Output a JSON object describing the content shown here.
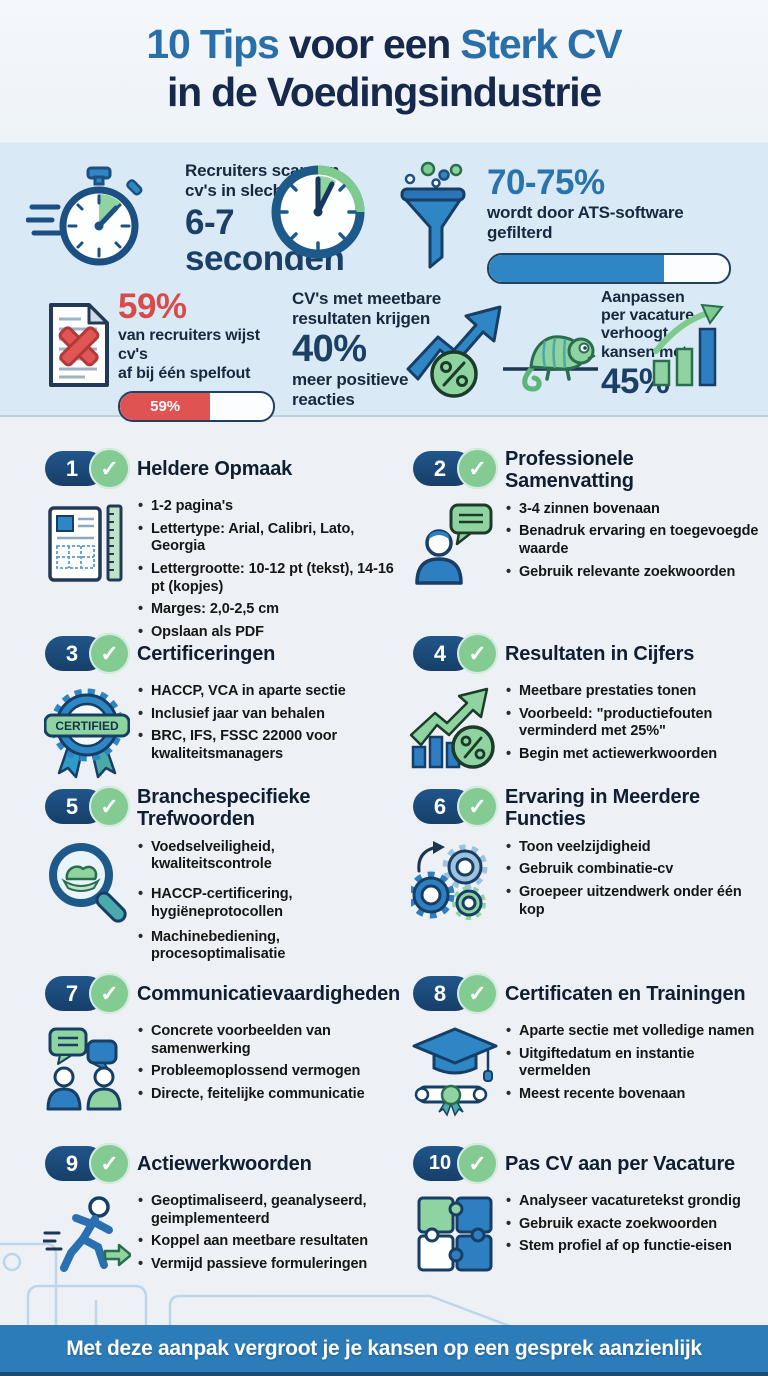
{
  "colors": {
    "accent_blue": "#2a6fa8",
    "dark_navy": "#16294a",
    "band_bg": "#d9e9f5",
    "green": "#7ecb90",
    "red": "#d94b4b",
    "bar_blue": "#2e86c4",
    "footer_bg": "#2d7cba"
  },
  "header": {
    "title_part1": "10 Tips ",
    "title_part2": "voor een ",
    "title_part3": "Sterk CV",
    "title_line2": "in de Voedingsindustrie"
  },
  "stats": {
    "scan": {
      "label": "Recruiters scannen\ncv's in slechts",
      "value": "6-7\nseconden"
    },
    "ats": {
      "value": "70-75%",
      "label": "wordt door ATS-software gefilterd",
      "bar_percent": 73
    },
    "spelling": {
      "value": "59%",
      "label": "van recruiters wijst cv's\naf bij één spelfout",
      "bar_label": "59%",
      "bar_percent": 59
    },
    "measurable": {
      "label_top": "CV's met meetbare\nresultaten krijgen",
      "value": "40%",
      "label_bottom": "meer positieve\nreacties"
    },
    "tailor": {
      "label": "Aanpassen\nper vacature\nverhoogt\nkansen met",
      "value": "45%"
    }
  },
  "icons": {
    "certified_label": "CERTIFIED",
    "check_glyph": "✓"
  },
  "tips": [
    {
      "number": "1",
      "title": "Heldere Opmaak",
      "bullets": [
        "1-2 pagina's",
        "Lettertype: Arial, Calibri, Lato, Georgia",
        "Lettergrootte: 10-12 pt (tekst), 14-16 pt (kopjes)",
        "Marges: 2,0-2,5 cm",
        "Opslaan als PDF"
      ]
    },
    {
      "number": "2",
      "title": "Professionele Samenvatting",
      "bullets": [
        "3-4 zinnen bovenaan",
        "Benadruk ervaring en toegevoegde waarde",
        "Gebruik relevante zoekwoorden"
      ]
    },
    {
      "number": "3",
      "title": "Certificeringen",
      "bullets": [
        "HACCP, VCA in aparte sectie",
        "Inclusief jaar van behalen",
        "BRC, IFS, FSSC 22000 voor kwaliteitsmanagers"
      ]
    },
    {
      "number": "4",
      "title": "Resultaten in Cijfers",
      "bullets": [
        "Meetbare prestaties tonen",
        "Voorbeeld: \"productiefouten verminderd met 25%\"",
        "Begin met actiewerkwoorden"
      ]
    },
    {
      "number": "5",
      "title": "Branchespecifieke Trefwoorden",
      "bullets": [
        "Voedselveiligheid, kwaliteitscontrole",
        "HACCP-certificering, hygiëneprotocollen",
        "Machinebediening, procesoptimalisatie"
      ]
    },
    {
      "number": "6",
      "title": "Ervaring in Meerdere Functies",
      "bullets": [
        "Toon veelzijdigheid",
        "Gebruik combinatie-cv",
        "Groepeer uitzendwerk onder één kop"
      ]
    },
    {
      "number": "7",
      "title": "Communicatievaardigheden",
      "bullets": [
        "Concrete voorbeelden van samenwerking",
        "Probleemoplossend vermogen",
        "Directe, feitelijke communicatie"
      ]
    },
    {
      "number": "8",
      "title": "Certificaten en Trainingen",
      "bullets": [
        "Aparte sectie met volledige namen",
        "Uitgiftedatum en instantie vermelden",
        "Meest recente bovenaan"
      ]
    },
    {
      "number": "9",
      "title": "Actiewerkwoorden",
      "bullets": [
        "Geoptimaliseerd, geanalyseerd, geimplementeerd",
        "Koppel aan meetbare resultaten",
        "Vermijd passieve formuleringen"
      ]
    },
    {
      "number": "10",
      "title": "Pas CV aan per Vacature",
      "bullets": [
        "Analyseer vacaturetekst grondig",
        "Gebruik exacte zoekwoorden",
        "Stem profiel af op functie-eisen"
      ]
    }
  ],
  "footer": {
    "text": "Met deze aanpak vergroot je je kansen op een gesprek aanzienlijk"
  }
}
